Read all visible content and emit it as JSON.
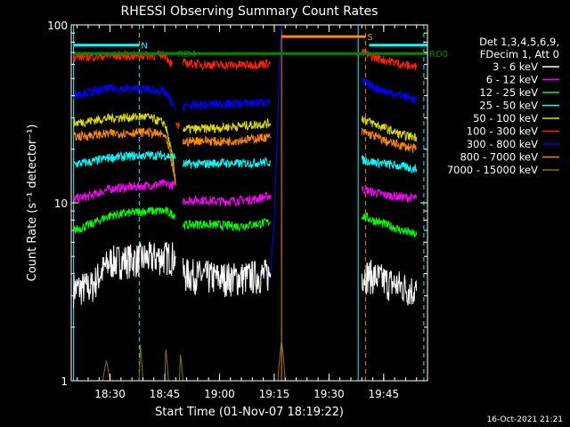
{
  "chart_data": {
    "type": "line",
    "title": "RHESSI Observing Summary Count Rates",
    "xlabel": "Start Time (01-Nov-07 18:19:22)",
    "ylabel": "Count Rate (s⁻¹ detector⁻¹)",
    "yscale": "log",
    "ylim": [
      1,
      100
    ],
    "x_time_range": [
      "18:19:22",
      "19:57:00"
    ],
    "x_tick_labels": [
      "18:30",
      "18:45",
      "19:00",
      "19:15",
      "19:30",
      "19:45"
    ],
    "y_tick_labels": [
      "1",
      "10",
      "100"
    ],
    "legend_header": [
      "Det 1,3,4,5,6,9,",
      "FDecim 1, Att 0"
    ],
    "legend_position": "right",
    "series": [
      {
        "name": "3 - 6 keV",
        "color": "#ffffff",
        "segments": [
          {
            "x": [
              "18:20",
              "18:25",
              "18:30",
              "18:40",
              "18:45",
              "18:48"
            ],
            "y": [
              3.3,
              3.4,
              4.7,
              4.9,
              5.0,
              5.0
            ]
          },
          {
            "x": [
              "18:50",
              "18:55",
              "19:00",
              "19:05",
              "19:10",
              "19:14"
            ],
            "y": [
              4.0,
              3.9,
              3.8,
              3.8,
              3.9,
              4.0
            ]
          },
          {
            "x": [
              "19:39",
              "19:42",
              "19:46",
              "19:50",
              "19:54"
            ],
            "y": [
              4.0,
              3.9,
              3.6,
              3.4,
              3.2
            ]
          }
        ]
      },
      {
        "name": "6 - 12 keV",
        "color": "#ff00ff",
        "segments": [
          {
            "x": [
              "18:20",
              "18:25",
              "18:30",
              "18:40",
              "18:45",
              "18:48"
            ],
            "y": [
              10.5,
              11.0,
              12.0,
              12.5,
              12.8,
              12.5
            ]
          },
          {
            "x": [
              "18:50",
              "18:55",
              "19:00",
              "19:05",
              "19:10",
              "19:14"
            ],
            "y": [
              10.3,
              10.4,
              10.2,
              10.3,
              10.5,
              11.0
            ]
          },
          {
            "x": [
              "19:39",
              "19:42",
              "19:46",
              "19:50",
              "19:54"
            ],
            "y": [
              12.0,
              11.5,
              11.0,
              10.8,
              10.6
            ]
          }
        ]
      },
      {
        "name": "12 - 25 keV",
        "color": "#00ff00",
        "segments": [
          {
            "x": [
              "18:20",
              "18:25",
              "18:30",
              "18:40",
              "18:45",
              "18:48"
            ],
            "y": [
              7.0,
              7.6,
              8.5,
              9.0,
              9.0,
              8.5
            ]
          },
          {
            "x": [
              "18:50",
              "18:55",
              "19:00",
              "19:05",
              "19:10",
              "19:14"
            ],
            "y": [
              7.5,
              7.6,
              7.5,
              7.4,
              7.6,
              7.8
            ]
          },
          {
            "x": [
              "19:39",
              "19:42",
              "19:46",
              "19:50",
              "19:54"
            ],
            "y": [
              8.5,
              8.0,
              7.5,
              7.0,
              6.6
            ]
          }
        ]
      },
      {
        "name": "25 - 50 keV",
        "color": "#00ffff",
        "segments": [
          {
            "x": [
              "18:20",
              "18:25",
              "18:30",
              "18:40",
              "18:45",
              "18:48"
            ],
            "y": [
              16.5,
              17.0,
              18.0,
              18.5,
              18.5,
              18.0
            ]
          },
          {
            "x": [
              "18:50",
              "18:55",
              "19:00",
              "19:05",
              "19:10",
              "19:14"
            ],
            "y": [
              16.5,
              16.5,
              16.8,
              16.6,
              16.8,
              17.0
            ]
          },
          {
            "x": [
              "19:39",
              "19:42",
              "19:46",
              "19:50",
              "19:54"
            ],
            "y": [
              17.5,
              17.0,
              16.5,
              16.0,
              15.5
            ]
          }
        ]
      },
      {
        "name": "50 - 100 keV",
        "color": "#dddd00",
        "segments": [
          {
            "x": [
              "18:20",
              "18:25",
              "18:30",
              "18:40",
              "18:45",
              "18:48"
            ],
            "y": [
              28.0,
              29.0,
              30.0,
              30.5,
              28.0,
              13.0
            ]
          },
          {
            "x": [
              "18:50",
              "18:55",
              "19:00",
              "19:05",
              "19:10",
              "19:14"
            ],
            "y": [
              26.0,
              26.0,
              26.5,
              27.0,
              27.5,
              28.0
            ]
          },
          {
            "x": [
              "19:39",
              "19:42",
              "19:46",
              "19:50",
              "19:54"
            ],
            "y": [
              30.0,
              28.0,
              26.0,
              24.0,
              23.5
            ]
          }
        ]
      },
      {
        "name": "100 - 300 keV",
        "color": "#ff2200",
        "segments": [
          {
            "x": [
              "18:20",
              "18:25",
              "18:30",
              "18:40",
              "18:45",
              "18:47"
            ],
            "y": [
              66.0,
              66.5,
              67.0,
              67.5,
              68.0,
              60.0
            ]
          },
          {
            "x": [
              "18:48",
              "18:49"
            ],
            "y": [
              27.0,
              27.0
            ]
          },
          {
            "x": [
              "18:50",
              "18:55",
              "19:00",
              "19:05",
              "19:10",
              "19:14"
            ],
            "y": [
              61.0,
              60.0,
              59.5,
              59.5,
              60.0,
              61.0
            ]
          },
          {
            "x": [
              "19:39",
              "19:42",
              "19:46",
              "19:50",
              "19:54"
            ],
            "y": [
              70.0,
              66.0,
              63.0,
              60.0,
              58.0
            ]
          }
        ]
      },
      {
        "name": "300 - 800 keV",
        "color": "#0000ff",
        "segments": [
          {
            "x": [
              "18:20",
              "18:25",
              "18:30",
              "18:40",
              "18:45",
              "18:48"
            ],
            "y": [
              41.0,
              42.0,
              44.0,
              43.5,
              42.0,
              33.0
            ]
          },
          {
            "x": [
              "18:50",
              "18:55",
              "19:00",
              "19:05",
              "19:10",
              "19:14"
            ],
            "y": [
              35.0,
              35.5,
              36.0,
              36.0,
              36.5,
              37.0
            ]
          },
          {
            "x": [
              "19:39",
              "19:42",
              "19:46",
              "19:50",
              "19:54"
            ],
            "y": [
              48.0,
              45.0,
              42.0,
              40.0,
              38.0
            ]
          }
        ]
      },
      {
        "name": "800 - 7000 keV",
        "color": "#ff8800",
        "segments": [
          {
            "x": [
              "18:20",
              "18:25",
              "18:30",
              "18:40",
              "18:45",
              "18:48"
            ],
            "y": [
              23.5,
              24.0,
              24.5,
              25.0,
              24.0,
              12.5
            ]
          },
          {
            "x": [
              "18:50",
              "18:55",
              "19:00",
              "19:05",
              "19:10",
              "19:14"
            ],
            "y": [
              22.0,
              22.5,
              22.0,
              22.5,
              23.0,
              23.5
            ]
          },
          {
            "x": [
              "19:39",
              "19:42",
              "19:46",
              "19:50",
              "19:54"
            ],
            "y": [
              25.0,
              24.0,
              22.0,
              21.0,
              20.0
            ]
          }
        ]
      },
      {
        "name": "7000 - 15000 keV",
        "color": "#887700",
        "segments": [
          {
            "x": [
              "18:28",
              "18:29",
              "18:30"
            ],
            "y": [
              1.0,
              1.3,
              1.0
            ]
          },
          {
            "x": [
              "18:38",
              "18:38.3",
              "18:39"
            ],
            "y": [
              1.0,
              1.6,
              1.0
            ]
          },
          {
            "x": [
              "18:45",
              "18:45.3",
              "18:46"
            ],
            "y": [
              1.0,
              1.5,
              1.0
            ]
          },
          {
            "x": [
              "18:49",
              "18:49.3",
              "18:50"
            ],
            "y": [
              1.0,
              1.4,
              1.0
            ]
          },
          {
            "x": [
              "19:16",
              "19:17",
              "19:18"
            ],
            "y": [
              1.0,
              1.7,
              1.0
            ]
          }
        ]
      }
    ],
    "flag_bars": [
      {
        "label": "N",
        "color": "#00ffff",
        "x": [
          "18:20",
          "18:38"
        ],
        "y": 77
      },
      {
        "label": "",
        "color": "#00ffff",
        "x": [
          "19:41",
          "19:57"
        ],
        "y": 77
      },
      {
        "label": "RD0",
        "color": "#008800",
        "x": [
          "18:20",
          "19:57"
        ],
        "y": 69
      },
      {
        "label": "RD4",
        "color": "#008800",
        "x": [
          "18:20",
          "18:48"
        ],
        "y": 69
      },
      {
        "label": "S",
        "color": "#ff8800",
        "x": [
          "19:17",
          "19:40"
        ],
        "y": 86
      }
    ],
    "vertical_markers": [
      {
        "x": "18:38",
        "color": "#00ffff",
        "style": "dashed"
      },
      {
        "x": "19:38",
        "color": "#00ffff",
        "style": "solid"
      },
      {
        "x": "19:40",
        "color": "#ff8800",
        "style": "dashed"
      },
      {
        "x": "19:17",
        "color": "#ff8800",
        "style": "solid"
      },
      {
        "x": "19:56",
        "color": "#00ffff",
        "style": "dashed"
      },
      {
        "x": "18:20",
        "color": "#00ffff",
        "style": "solid"
      }
    ]
  },
  "timestamp": "16-Oct-2021 21:21"
}
